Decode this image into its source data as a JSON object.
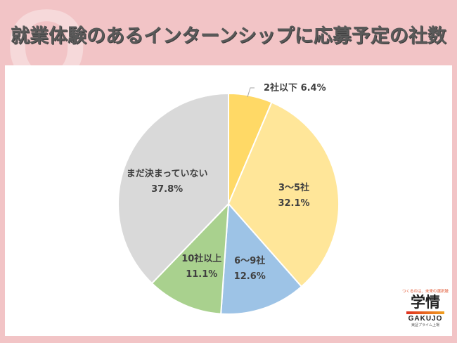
{
  "header": {
    "title": "就業体験のあるインターンシップに応募予定の社数",
    "q_mark": "Q"
  },
  "chart_data": {
    "type": "pie",
    "title": "就業体験のあるインターンシップに応募予定の社数",
    "start": "top",
    "direction": "clockwise",
    "slices": [
      {
        "label": "2社以下",
        "value": 6.4,
        "value_label": "6.4%",
        "color": "#ffd966"
      },
      {
        "label": "3～5社",
        "value": 32.1,
        "value_label": "32.1%",
        "color": "#ffe699"
      },
      {
        "label": "6～9社",
        "value": 12.6,
        "value_label": "12.6%",
        "color": "#9dc3e6"
      },
      {
        "label": "10社以上",
        "value": 11.1,
        "value_label": "11.1%",
        "color": "#a9d18e"
      },
      {
        "label": "まだ決まっていない",
        "value": 37.8,
        "value_label": "37.8%",
        "color": "#d9d9d9"
      }
    ]
  },
  "logo": {
    "tagline": "つくるのは、未来の選択肢",
    "name": "学情",
    "name_en": "GAKUJO",
    "sub": "東証プライム上場"
  }
}
